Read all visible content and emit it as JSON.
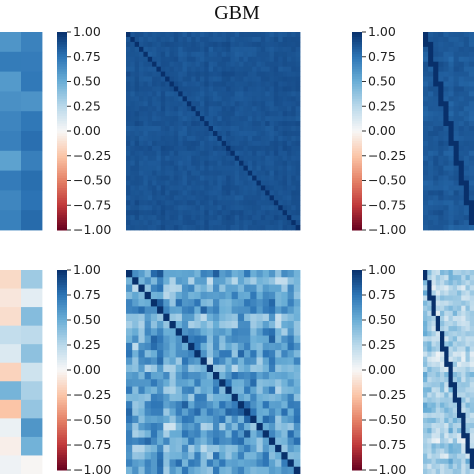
{
  "title": "GBM",
  "colormap": {
    "name": "RdBu",
    "stops": [
      [
        -1.0,
        "#67001f"
      ],
      [
        -0.75,
        "#c0393b"
      ],
      [
        -0.5,
        "#e58267"
      ],
      [
        -0.25,
        "#fbc6a8"
      ],
      [
        0.0,
        "#f7f7f7"
      ],
      [
        0.25,
        "#b9d8ea"
      ],
      [
        0.5,
        "#6aaed6"
      ],
      [
        0.75,
        "#2c74b5"
      ],
      [
        1.0,
        "#08306b"
      ]
    ]
  },
  "colorbar": {
    "ticks": [
      1.0,
      0.75,
      0.5,
      0.25,
      0.0,
      -0.25,
      -0.5,
      -0.75,
      -1.0
    ],
    "labels": [
      "1.00",
      "0.75",
      "0.50",
      "0.25",
      "0.00",
      "−0.25",
      "−0.50",
      "−0.75",
      "−1.00"
    ]
  },
  "chart_data": [
    {
      "type": "heatmap",
      "panel": "top-left (cropped)",
      "description_of_values": "strong positive correlations, mostly 0.5-0.85",
      "value_range": [
        0.5,
        0.85
      ],
      "colorbar_range": [
        -1,
        1
      ]
    },
    {
      "type": "heatmap",
      "panel": "top-center",
      "value_range": [
        0.82,
        0.92
      ],
      "diagonal": 1.0,
      "colorbar_range": [
        -1,
        1
      ]
    },
    {
      "type": "heatmap",
      "panel": "top-right (cropped)",
      "value_range": [
        0.78,
        0.9
      ],
      "diagonal": 1.0,
      "colorbar_range": [
        -1,
        1
      ]
    },
    {
      "type": "heatmap",
      "panel": "bottom-left (cropped)",
      "value_range": [
        -0.4,
        0.9
      ],
      "colorbar_range": [
        -1,
        1
      ]
    },
    {
      "type": "heatmap",
      "panel": "bottom-center",
      "value_range": [
        0.1,
        0.95
      ],
      "diagonal": 1.0,
      "colorbar_range": [
        -1,
        1
      ]
    },
    {
      "type": "heatmap",
      "panel": "bottom-right (cropped)",
      "value_range": [
        0.0,
        0.6
      ],
      "diagonal": 1.0,
      "colorbar_range": [
        -1,
        1
      ]
    }
  ]
}
